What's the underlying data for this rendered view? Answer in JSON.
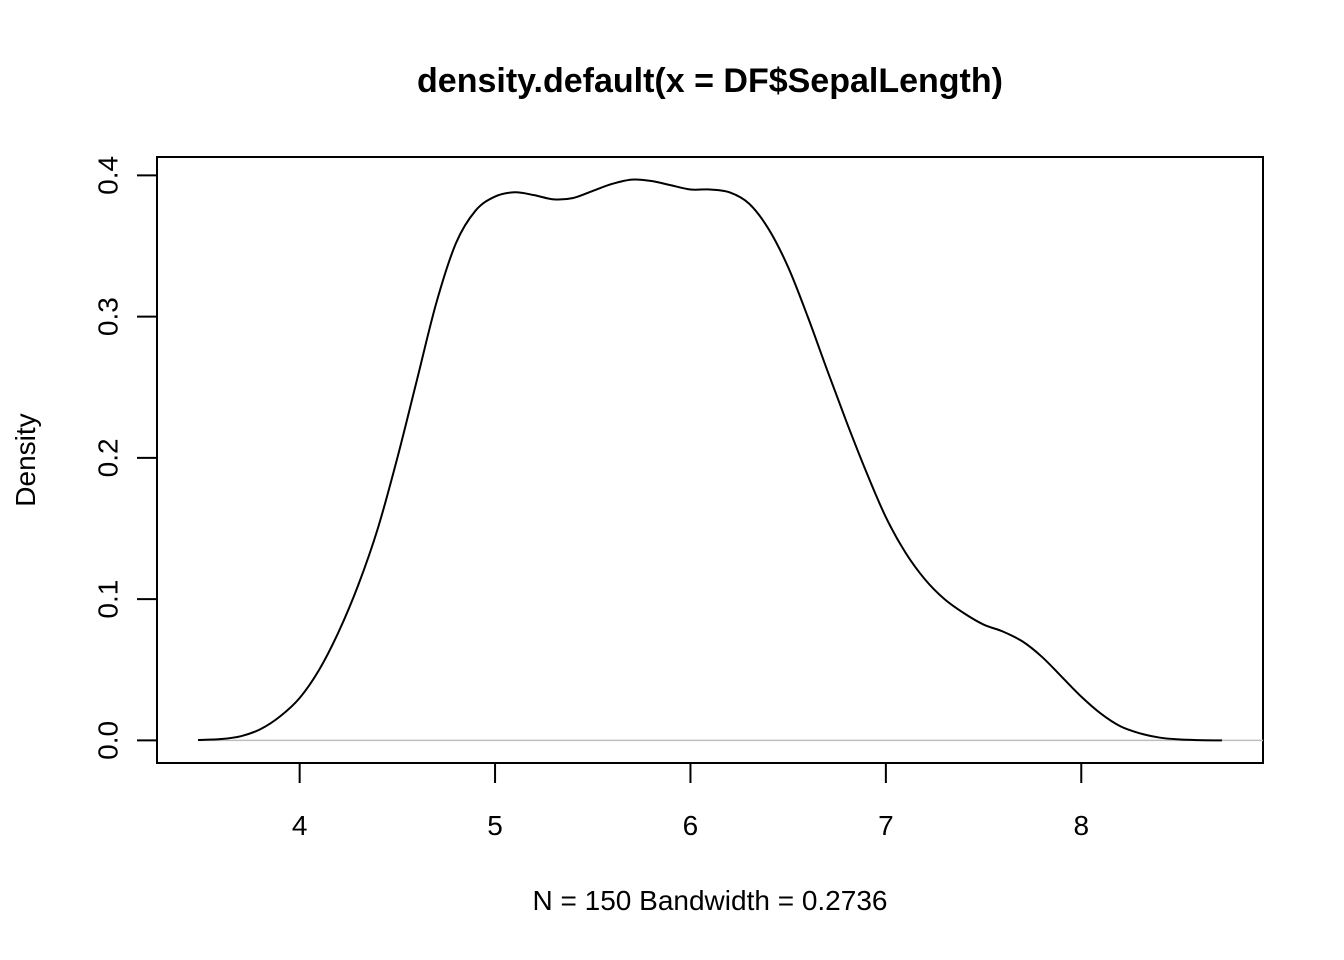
{
  "chart_data": {
    "type": "line",
    "title": "density.default(x = DF$SepalLength)",
    "xlabel": "N = 150   Bandwidth = 0.2736",
    "ylabel": "Density",
    "xlim": [
      3.27,
      8.93
    ],
    "ylim": [
      -0.016,
      0.413
    ],
    "xticks": [
      4,
      5,
      6,
      7,
      8
    ],
    "xtick_labels": [
      "4",
      "5",
      "6",
      "7",
      "8"
    ],
    "yticks": [
      0.0,
      0.1,
      0.2,
      0.3,
      0.4
    ],
    "ytick_labels": [
      "0.0",
      "0.1",
      "0.2",
      "0.3",
      "0.4"
    ],
    "grid": false,
    "baseline": {
      "y": 0,
      "color": "#bebebe"
    },
    "series": [
      {
        "color": "#000000",
        "x": [
          3.48,
          3.6,
          3.7,
          3.8,
          3.9,
          4.0,
          4.1,
          4.2,
          4.3,
          4.4,
          4.5,
          4.6,
          4.7,
          4.8,
          4.9,
          5.0,
          5.1,
          5.2,
          5.3,
          5.4,
          5.5,
          5.6,
          5.7,
          5.8,
          5.9,
          6.0,
          6.1,
          6.2,
          6.3,
          6.4,
          6.5,
          6.6,
          6.7,
          6.8,
          6.9,
          7.0,
          7.1,
          7.2,
          7.3,
          7.4,
          7.5,
          7.6,
          7.7,
          7.8,
          7.9,
          8.0,
          8.1,
          8.2,
          8.3,
          8.4,
          8.5,
          8.6,
          8.72
        ],
        "y": [
          0.0003,
          0.001,
          0.003,
          0.008,
          0.017,
          0.03,
          0.05,
          0.077,
          0.11,
          0.15,
          0.2,
          0.255,
          0.31,
          0.352,
          0.375,
          0.385,
          0.388,
          0.386,
          0.383,
          0.384,
          0.389,
          0.394,
          0.397,
          0.396,
          0.393,
          0.39,
          0.39,
          0.388,
          0.38,
          0.362,
          0.335,
          0.3,
          0.262,
          0.225,
          0.19,
          0.158,
          0.133,
          0.114,
          0.1,
          0.09,
          0.082,
          0.077,
          0.07,
          0.059,
          0.045,
          0.031,
          0.019,
          0.01,
          0.005,
          0.002,
          0.0007,
          0.0002,
          0.0
        ]
      }
    ]
  }
}
